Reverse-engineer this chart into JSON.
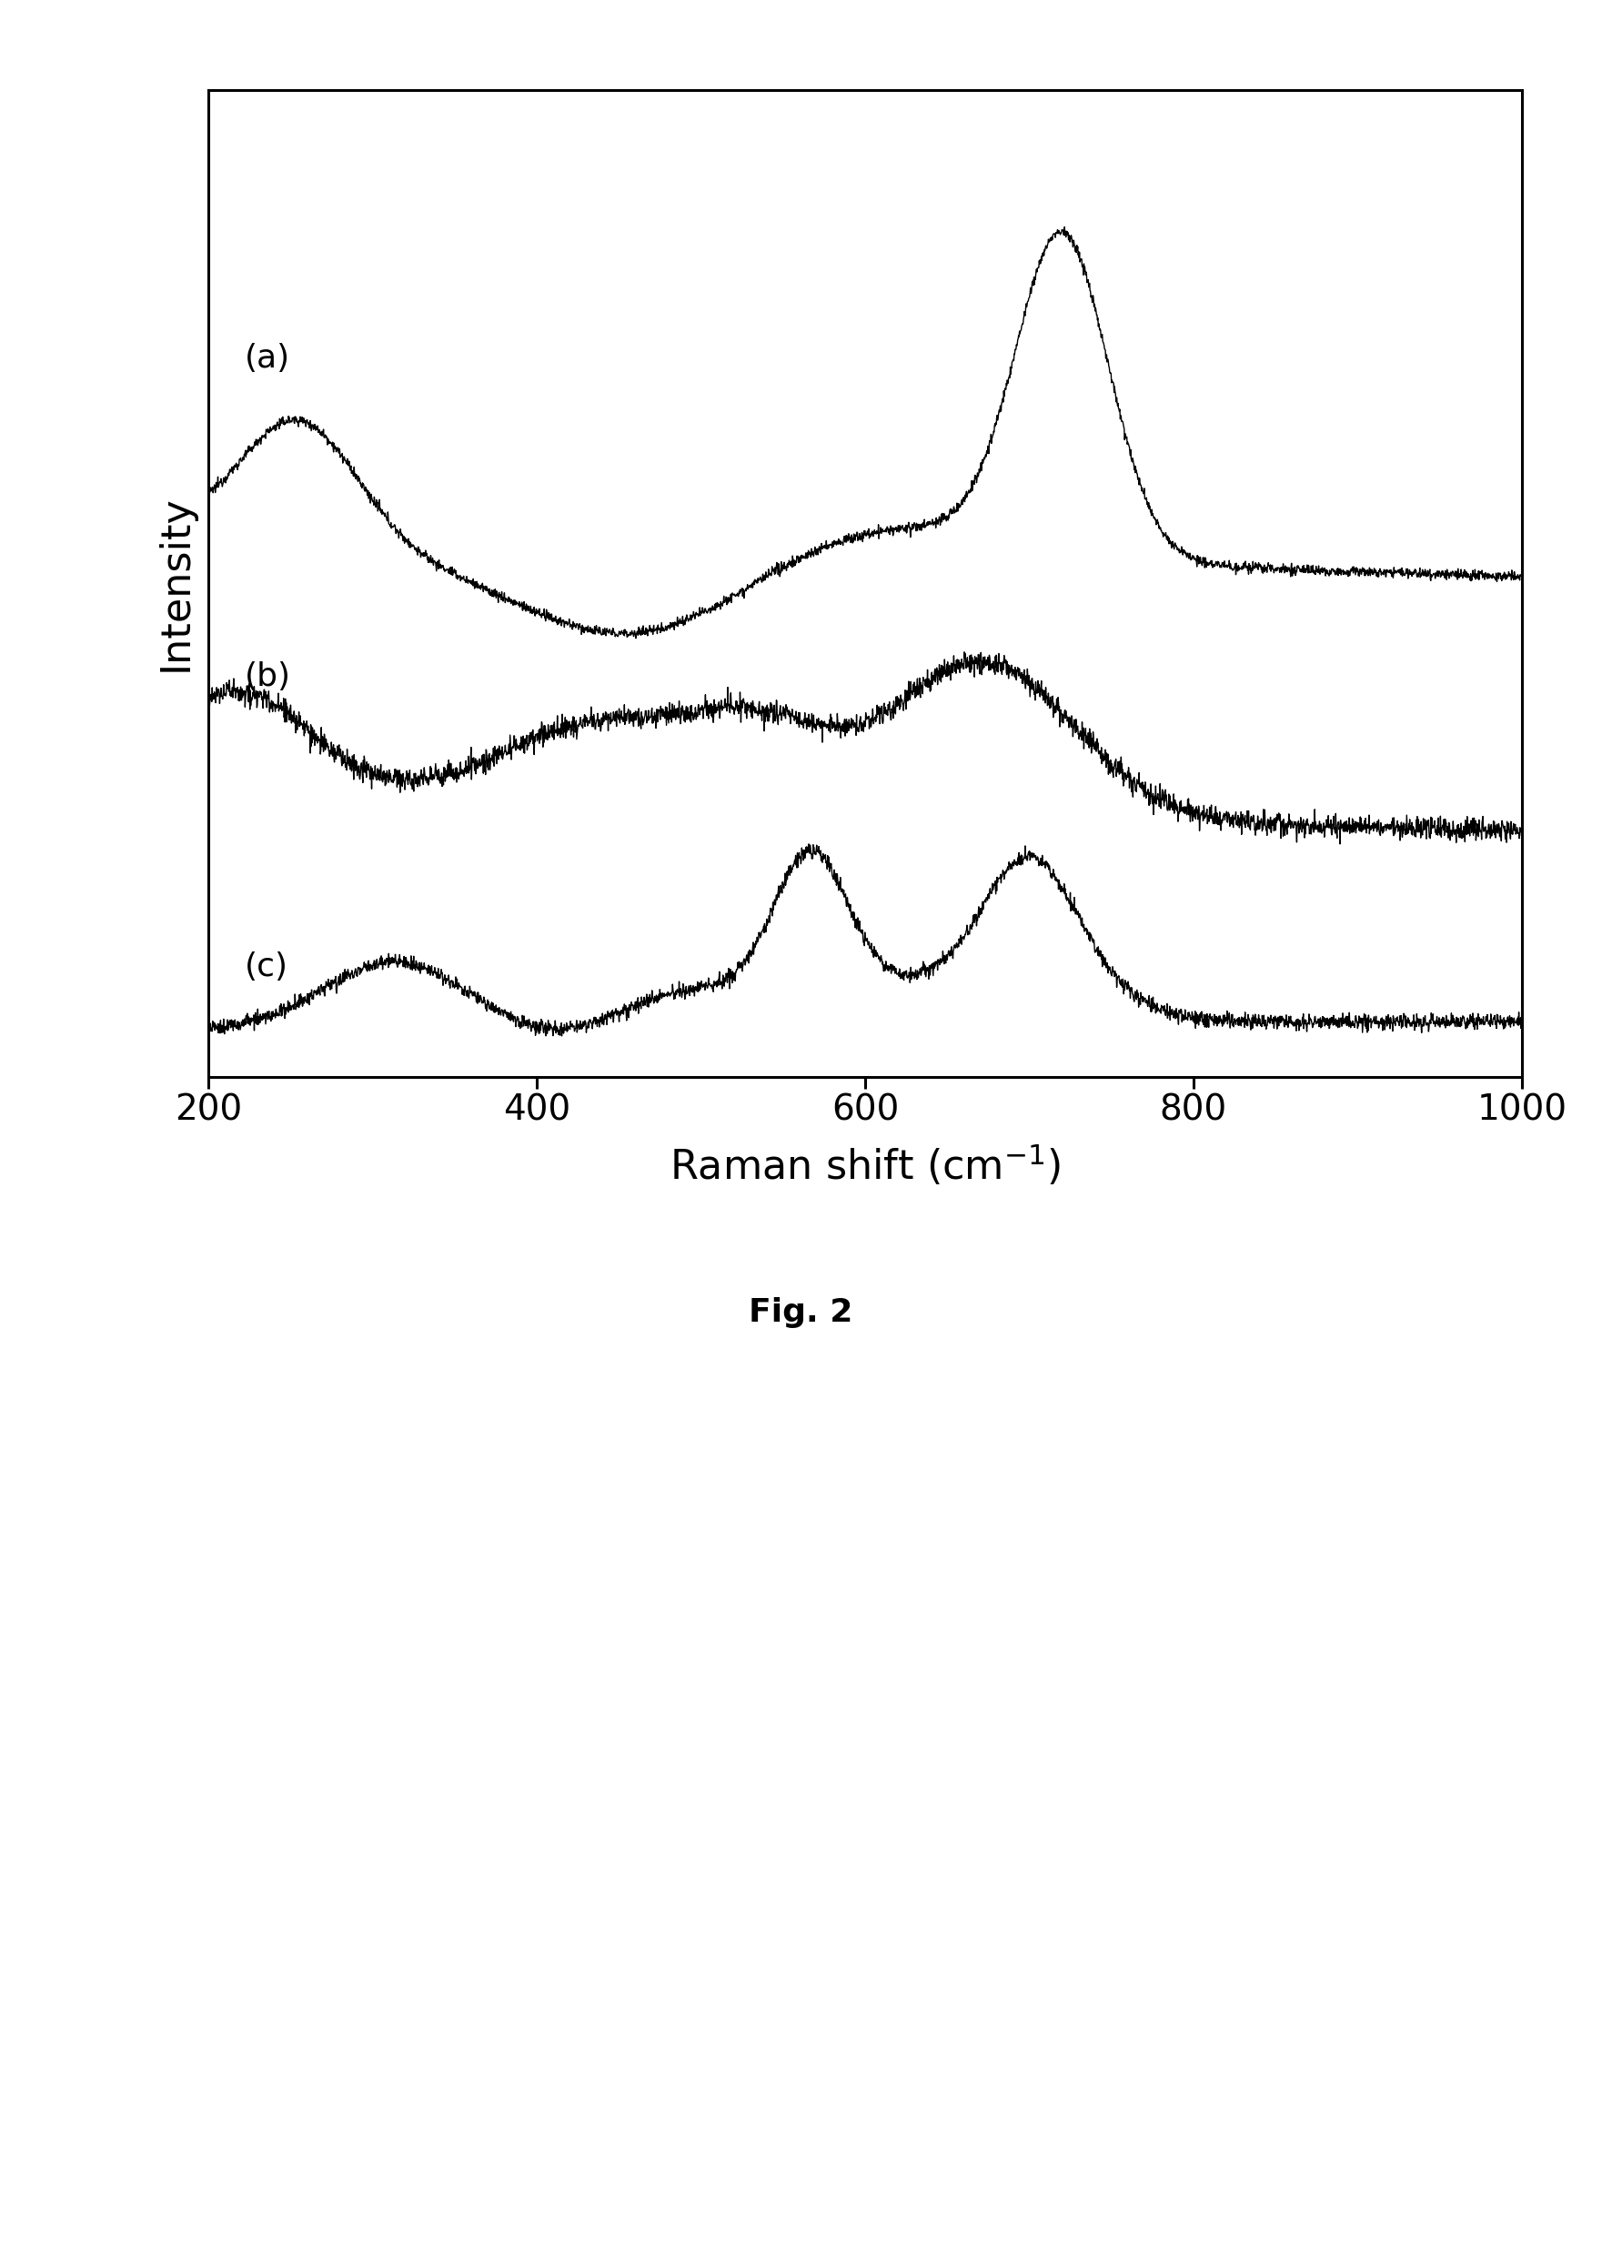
{
  "ylabel": "Intensity",
  "xlim": [
    200,
    1000
  ],
  "fig_label": "Fig. 2",
  "background_color": "#ffffff",
  "line_color": "#000000",
  "label_a": "(a)",
  "label_b": "(b)",
  "label_c": "(c)",
  "xlabel_fontsize": 32,
  "ylabel_fontsize": 32,
  "tick_fontsize": 28,
  "label_fontsize": 26,
  "figlabel_fontsize": 26,
  "line_width": 1.0
}
